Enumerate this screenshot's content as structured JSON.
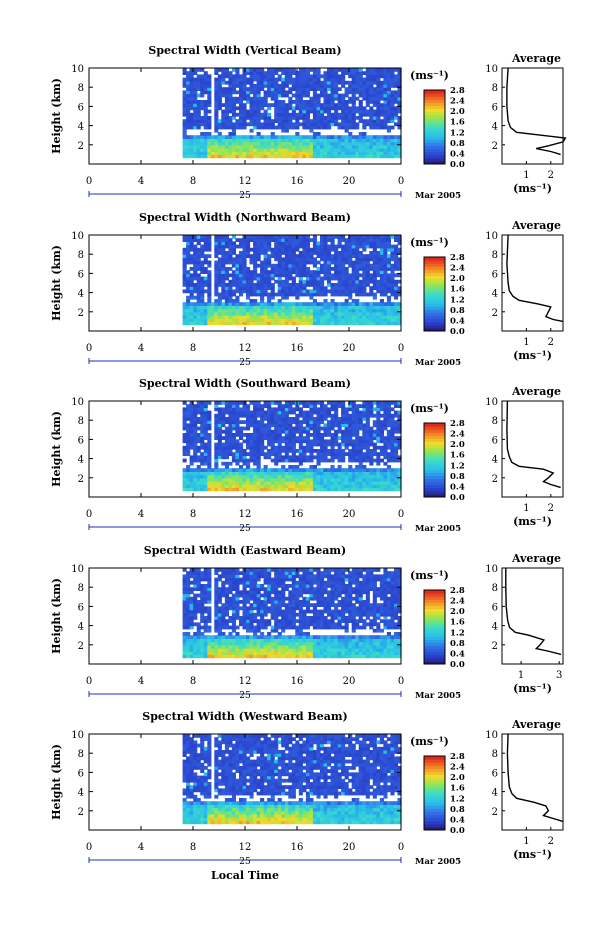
{
  "figure": {
    "x_axis_label": "Local Time",
    "date_label": "Mar 2005",
    "day_label": "25",
    "colorbar_unit": "(ms⁻¹)",
    "colorbar_ticks": [
      "0.0",
      "0.4",
      "0.8",
      "1.2",
      "1.6",
      "2.0",
      "2.4",
      "2.8"
    ],
    "average_title": "Average",
    "average_xlabel": "(ms⁻¹)",
    "ylabel": "Height (km)",
    "colors": {
      "low": "#2c3fd1",
      "mid": "#2fd3e6",
      "high": "#e83b2a",
      "axis": "#000000",
      "date_mark": "#1f2fbf"
    }
  },
  "chart_data": [
    {
      "type": "heatmap",
      "title": "Spectral Width (Vertical Beam)",
      "xlabel": "Local Time",
      "ylabel": "Height (km)",
      "xlim": [
        0,
        24
      ],
      "ylim": [
        0,
        10
      ],
      "xticks": [
        "0",
        "4",
        "8",
        "12",
        "16",
        "20",
        "0"
      ],
      "yticks": [
        "2",
        "4",
        "6",
        "8",
        "10"
      ],
      "data_start_hour": 7.2,
      "colorbar": {
        "min": 0.0,
        "max": 2.8,
        "label": "(ms⁻¹)"
      },
      "average_profile": {
        "xticks": [
          "1",
          "2"
        ],
        "xlim": [
          0,
          2.5
        ],
        "points": [
          [
            2.4,
            1.0
          ],
          [
            2.0,
            1.3
          ],
          [
            1.4,
            1.6
          ],
          [
            1.9,
            1.9
          ],
          [
            2.5,
            2.3
          ],
          [
            2.6,
            2.7
          ],
          [
            1.6,
            3.0
          ],
          [
            0.6,
            3.3
          ],
          [
            0.35,
            3.8
          ],
          [
            0.25,
            4.5
          ],
          [
            0.2,
            6
          ],
          [
            0.2,
            8
          ],
          [
            0.25,
            10
          ]
        ]
      }
    },
    {
      "type": "heatmap",
      "title": "Spectral Width (Northward Beam)",
      "xlabel": "Local Time",
      "ylabel": "Height (km)",
      "xlim": [
        0,
        24
      ],
      "ylim": [
        0,
        10
      ],
      "xticks": [
        "0",
        "4",
        "8",
        "12",
        "16",
        "20",
        "0"
      ],
      "yticks": [
        "2",
        "4",
        "6",
        "8",
        "10"
      ],
      "data_start_hour": 7.2,
      "colorbar": {
        "min": 0.0,
        "max": 2.8,
        "label": "(ms⁻¹)"
      },
      "average_profile": {
        "xticks": [
          "1",
          "2"
        ],
        "xlim": [
          0,
          2.5
        ],
        "points": [
          [
            2.5,
            1.0
          ],
          [
            2.1,
            1.2
          ],
          [
            1.8,
            1.5
          ],
          [
            1.9,
            2.0
          ],
          [
            2.0,
            2.5
          ],
          [
            1.5,
            2.8
          ],
          [
            0.7,
            3.2
          ],
          [
            0.45,
            3.6
          ],
          [
            0.3,
            4.2
          ],
          [
            0.25,
            5
          ],
          [
            0.2,
            7
          ],
          [
            0.25,
            10
          ]
        ]
      }
    },
    {
      "type": "heatmap",
      "title": "Spectral Width (Southward Beam)",
      "xlabel": "Local Time",
      "ylabel": "Height (km)",
      "xlim": [
        0,
        24
      ],
      "ylim": [
        0,
        10
      ],
      "xticks": [
        "0",
        "4",
        "8",
        "12",
        "16",
        "20",
        "0"
      ],
      "yticks": [
        "2",
        "4",
        "6",
        "8",
        "10"
      ],
      "data_start_hour": 7.2,
      "colorbar": {
        "min": 0.0,
        "max": 2.8,
        "label": "(ms⁻¹)"
      },
      "average_profile": {
        "xticks": [
          "1",
          "2"
        ],
        "xlim": [
          0,
          2.5
        ],
        "points": [
          [
            2.4,
            1.0
          ],
          [
            2.0,
            1.3
          ],
          [
            1.7,
            1.6
          ],
          [
            1.9,
            2.0
          ],
          [
            2.1,
            2.5
          ],
          [
            1.7,
            2.9
          ],
          [
            0.7,
            3.2
          ],
          [
            0.4,
            3.6
          ],
          [
            0.3,
            4.2
          ],
          [
            0.22,
            5
          ],
          [
            0.2,
            7
          ],
          [
            0.22,
            10
          ]
        ]
      }
    },
    {
      "type": "heatmap",
      "title": "Spectral Width (Eastward Beam)",
      "xlabel": "Local Time",
      "ylabel": "Height (km)",
      "xlim": [
        0,
        24
      ],
      "ylim": [
        0,
        10
      ],
      "xticks": [
        "0",
        "4",
        "8",
        "12",
        "16",
        "20",
        "0"
      ],
      "yticks": [
        "2",
        "4",
        "6",
        "8",
        "10"
      ],
      "data_start_hour": 7.2,
      "colorbar": {
        "min": 0.0,
        "max": 2.8,
        "label": "(ms⁻¹)"
      },
      "average_profile": {
        "xticks": [
          "1",
          "3"
        ],
        "xlim": [
          0,
          3.2
        ],
        "points": [
          [
            3.1,
            1.0
          ],
          [
            2.5,
            1.3
          ],
          [
            1.8,
            1.6
          ],
          [
            2.0,
            2.0
          ],
          [
            2.2,
            2.5
          ],
          [
            1.4,
            3.0
          ],
          [
            0.7,
            3.3
          ],
          [
            0.4,
            3.8
          ],
          [
            0.3,
            4.5
          ],
          [
            0.22,
            6
          ],
          [
            0.2,
            8
          ],
          [
            0.2,
            10
          ]
        ]
      }
    },
    {
      "type": "heatmap",
      "title": "Spectral Width (Westward Beam)",
      "xlabel": "Local Time",
      "ylabel": "Height (km)",
      "xlim": [
        0,
        24
      ],
      "ylim": [
        0,
        10
      ],
      "xticks": [
        "0",
        "4",
        "8",
        "12",
        "16",
        "20",
        "0"
      ],
      "yticks": [
        "2",
        "4",
        "6",
        "8",
        "10"
      ],
      "data_start_hour": 7.2,
      "colorbar": {
        "min": 0.0,
        "max": 2.8,
        "label": "(ms⁻¹)"
      },
      "average_profile": {
        "xticks": [
          "1",
          "2"
        ],
        "xlim": [
          0,
          2.5
        ],
        "points": [
          [
            2.5,
            0.9
          ],
          [
            2.1,
            1.2
          ],
          [
            1.7,
            1.5
          ],
          [
            1.9,
            2.0
          ],
          [
            1.8,
            2.5
          ],
          [
            1.3,
            2.9
          ],
          [
            0.6,
            3.3
          ],
          [
            0.4,
            3.8
          ],
          [
            0.3,
            4.5
          ],
          [
            0.25,
            6
          ],
          [
            0.22,
            8
          ],
          [
            0.25,
            10
          ]
        ]
      }
    }
  ]
}
